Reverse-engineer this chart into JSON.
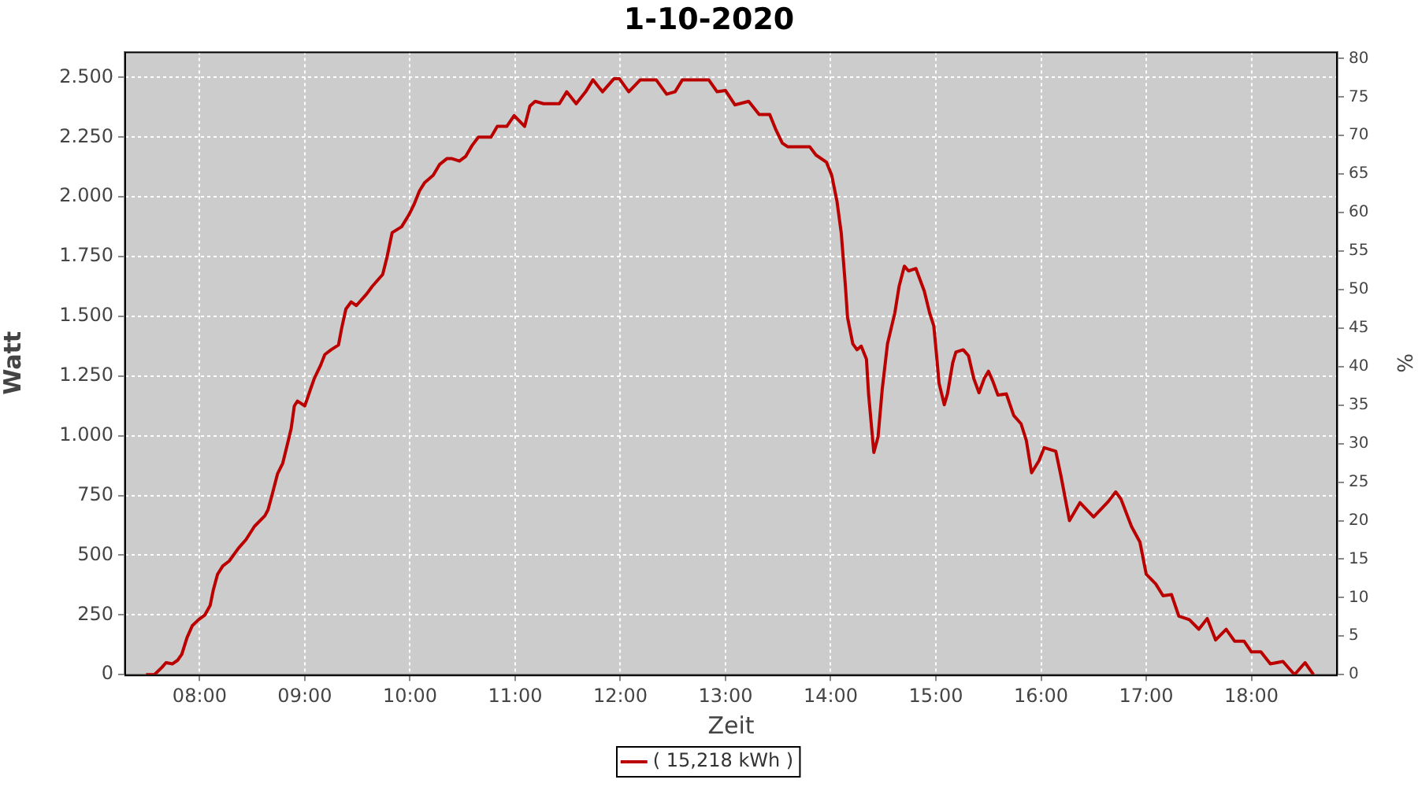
{
  "chart_data": {
    "type": "line",
    "title": "1-10-2020",
    "xlabel": "Zeit",
    "ylabel": "Watt",
    "y2label": "%",
    "x": [
      7.49,
      7.57,
      7.64,
      7.68,
      7.74,
      7.79,
      7.83,
      7.88,
      7.93,
      7.99,
      8.05,
      8.1,
      8.13,
      8.17,
      8.22,
      8.28,
      8.37,
      8.44,
      8.52,
      8.62,
      8.65,
      8.69,
      8.74,
      8.79,
      8.84,
      8.87,
      8.9,
      8.93,
      9.0,
      9.05,
      9.09,
      9.15,
      9.19,
      9.25,
      9.32,
      9.35,
      9.39,
      9.44,
      9.49,
      9.59,
      9.64,
      9.74,
      9.78,
      9.83,
      9.92,
      9.99,
      10.04,
      10.09,
      10.14,
      10.22,
      10.28,
      10.35,
      10.4,
      10.47,
      10.53,
      10.59,
      10.65,
      10.77,
      10.83,
      10.92,
      10.99,
      11.09,
      11.14,
      11.19,
      11.27,
      11.42,
      11.49,
      11.58,
      11.67,
      11.74,
      11.83,
      11.94,
      11.99,
      12.08,
      12.19,
      12.34,
      12.44,
      12.52,
      12.59,
      12.84,
      12.92,
      13.0,
      13.09,
      13.22,
      13.32,
      13.42,
      13.48,
      13.54,
      13.59,
      13.8,
      13.86,
      13.96,
      14.01,
      14.06,
      14.1,
      14.14,
      14.16,
      14.21,
      14.25,
      14.29,
      14.34,
      14.36,
      14.41,
      14.45,
      14.49,
      14.54,
      14.61,
      14.65,
      14.7,
      14.74,
      14.81,
      14.89,
      14.94,
      14.98,
      15.01,
      15.03,
      15.08,
      15.11,
      15.16,
      15.19,
      15.26,
      15.31,
      15.36,
      15.41,
      15.46,
      15.5,
      15.54,
      15.59,
      15.67,
      15.74,
      15.81,
      15.86,
      15.91,
      15.98,
      16.03,
      16.14,
      16.19,
      16.27,
      16.37,
      16.5,
      16.64,
      16.71,
      16.76,
      16.86,
      16.94,
      17.0,
      17.09,
      17.16,
      17.24,
      17.31,
      17.41,
      17.5,
      17.58,
      17.66,
      17.76,
      17.84,
      17.93,
      18.0,
      18.09,
      18.18,
      18.3,
      18.41,
      18.51,
      18.59
    ],
    "series": [
      {
        "name": "( 15,218 kWh )",
        "color": "#bb0000",
        "values": [
          0,
          0,
          30,
          50,
          45,
          60,
          85,
          155,
          205,
          230,
          250,
          290,
          355,
          420,
          455,
          475,
          530,
          565,
          620,
          665,
          690,
          755,
          840,
          885,
          975,
          1030,
          1125,
          1145,
          1125,
          1190,
          1240,
          1295,
          1340,
          1360,
          1380,
          1450,
          1530,
          1560,
          1545,
          1595,
          1625,
          1675,
          1745,
          1850,
          1875,
          1925,
          1970,
          2025,
          2060,
          2090,
          2135,
          2160,
          2160,
          2150,
          2170,
          2215,
          2250,
          2250,
          2295,
          2295,
          2340,
          2295,
          2380,
          2400,
          2390,
          2390,
          2440,
          2390,
          2440,
          2490,
          2440,
          2495,
          2495,
          2440,
          2490,
          2490,
          2430,
          2440,
          2490,
          2490,
          2440,
          2445,
          2385,
          2400,
          2345,
          2345,
          2280,
          2225,
          2210,
          2210,
          2175,
          2145,
          2090,
          1980,
          1850,
          1625,
          1495,
          1385,
          1360,
          1375,
          1320,
          1175,
          930,
          995,
          1195,
          1385,
          1515,
          1625,
          1710,
          1690,
          1700,
          1605,
          1515,
          1460,
          1320,
          1220,
          1130,
          1175,
          1305,
          1350,
          1360,
          1335,
          1240,
          1180,
          1240,
          1270,
          1230,
          1170,
          1175,
          1085,
          1050,
          980,
          845,
          895,
          950,
          935,
          830,
          645,
          720,
          660,
          725,
          765,
          735,
          620,
          555,
          420,
          380,
          330,
          335,
          245,
          230,
          190,
          235,
          145,
          190,
          140,
          140,
          95,
          95,
          45,
          55,
          0,
          50,
          0
        ]
      }
    ],
    "xlim": [
      7.285,
      18.82
    ],
    "xticks": [
      {
        "value": 8,
        "label": "08:00"
      },
      {
        "value": 9,
        "label": "09:00"
      },
      {
        "value": 10,
        "label": "10:00"
      },
      {
        "value": 11,
        "label": "11:00"
      },
      {
        "value": 12,
        "label": "12:00"
      },
      {
        "value": 13,
        "label": "13:00"
      },
      {
        "value": 14,
        "label": "14:00"
      },
      {
        "value": 15,
        "label": "15:00"
      },
      {
        "value": 16,
        "label": "16:00"
      },
      {
        "value": 17,
        "label": "17:00"
      },
      {
        "value": 18,
        "label": "18:00"
      }
    ],
    "ylim": [
      0,
      2608
    ],
    "yticks": [
      0,
      250,
      500,
      750,
      {
        "value": 1000,
        "label": "1.000"
      },
      {
        "value": 1250,
        "label": "1.250"
      },
      {
        "value": 1500,
        "label": "1.500"
      },
      {
        "value": 1750,
        "label": "1.750"
      },
      {
        "value": 2000,
        "label": "2.000"
      },
      {
        "value": 2250,
        "label": "2.250"
      },
      {
        "value": 2500,
        "label": "2.500"
      }
    ],
    "y2lim": [
      0,
      80.9
    ],
    "y2ticks": [
      0,
      5,
      10,
      15,
      20,
      25,
      30,
      35,
      40,
      45,
      50,
      55,
      60,
      65,
      70,
      75,
      80
    ],
    "grid": true,
    "legend": "bottom"
  }
}
